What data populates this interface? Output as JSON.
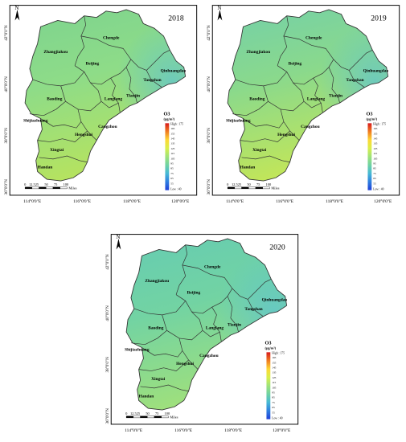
{
  "maps": [
    {
      "year": "2018",
      "north": "N",
      "cities": [
        {
          "name": "Zhangjiakou"
        },
        {
          "name": "Chengde"
        },
        {
          "name": "Beijing"
        },
        {
          "name": "Qinhuangdao"
        },
        {
          "name": "Tangshan"
        },
        {
          "name": "Tianjin"
        },
        {
          "name": "Langfang"
        },
        {
          "name": "Baoding"
        },
        {
          "name": "Cangzhou"
        },
        {
          "name": "Shijiazhuang"
        },
        {
          "name": "Hengshui"
        },
        {
          "name": "Xingtai"
        },
        {
          "name": "Handan"
        }
      ],
      "lon_labels": [
        "114°0'0\"E",
        "116°0'0\"E",
        "118°0'0\"E",
        "120°0'0\"E"
      ],
      "lat_labels": [
        "42°0'0\"N",
        "40°0'0\"N",
        "38°0'0\"N",
        "36°0'0\"N"
      ],
      "scale_labels": [
        "0",
        "12.525",
        "50",
        "75",
        "100"
      ],
      "scale_unit": "Miles",
      "legend": {
        "title": "O3",
        "unit": "(μg/m³)",
        "high_label": "High : 175",
        "low_label": "Low : 40",
        "ticks": [
          "165",
          "155",
          "145",
          "135",
          "125",
          "115",
          "105",
          "95",
          "85",
          "75",
          "65",
          "55"
        ],
        "colors": [
          "#d7191c",
          "#f07c20",
          "#fdd835",
          "#d9ef4b",
          "#9fe37a",
          "#6fd2a3",
          "#47b9d5",
          "#2f7fe0",
          "#1f3fd8"
        ]
      },
      "fill": {
        "dominant": "#8edc88",
        "north": "#7dd38f",
        "south": "#b6e35f"
      }
    },
    {
      "year": "2019",
      "north": "N",
      "cities": [
        {
          "name": "Zhangjiakou"
        },
        {
          "name": "Chengde"
        },
        {
          "name": "Beijing"
        },
        {
          "name": "Qinhuangdao"
        },
        {
          "name": "Tangshan"
        },
        {
          "name": "Tianjin"
        },
        {
          "name": "Langfang"
        },
        {
          "name": "Baoding"
        },
        {
          "name": "Cangzhou"
        },
        {
          "name": "Shijiazhuang"
        },
        {
          "name": "Hengshui"
        },
        {
          "name": "Xingtai"
        },
        {
          "name": "Handan"
        }
      ],
      "lon_labels": [
        "114°0'0\"E",
        "116°0'0\"E",
        "118°0'0\"E",
        "120°0'0\"E"
      ],
      "lat_labels": [
        "42°0'0\"N",
        "40°0'0\"N",
        "38°0'0\"N",
        "36°0'0\"N"
      ],
      "scale_labels": [
        "0",
        "12.525",
        "50",
        "75",
        "100"
      ],
      "scale_unit": "Miles",
      "legend": {
        "title": "O3",
        "unit": "(μg/m³)",
        "high_label": "High : 175",
        "low_label": "Low : 40",
        "ticks": [
          "165",
          "155",
          "145",
          "135",
          "125",
          "115",
          "105",
          "95",
          "85",
          "75",
          "65",
          "55"
        ],
        "colors": [
          "#d7191c",
          "#f07c20",
          "#fdd835",
          "#d9ef4b",
          "#9fe37a",
          "#6fd2a3",
          "#47b9d5",
          "#2f7fe0",
          "#1f3fd8"
        ]
      },
      "fill": {
        "dominant": "#8ad98c",
        "north": "#74d0a8",
        "south": "#c2e659"
      }
    },
    {
      "year": "2020",
      "north": "N",
      "cities": [
        {
          "name": "Zhangjiakou"
        },
        {
          "name": "Chengde"
        },
        {
          "name": "Beijing"
        },
        {
          "name": "Qinhuangdao"
        },
        {
          "name": "Tangshan"
        },
        {
          "name": "Tianjin"
        },
        {
          "name": "Langfang"
        },
        {
          "name": "Baoding"
        },
        {
          "name": "Cangzhou"
        },
        {
          "name": "Shijiazhuang"
        },
        {
          "name": "Hengshui"
        },
        {
          "name": "Xingtai"
        },
        {
          "name": "Handan"
        }
      ],
      "lon_labels": [
        "114°0'0\"E",
        "116°0'0\"E",
        "118°0'0\"E",
        "120°0'0\"E"
      ],
      "lat_labels": [
        "42°0'0\"N",
        "40°0'0\"N",
        "38°0'0\"N",
        "36°0'0\"N"
      ],
      "scale_labels": [
        "0",
        "12.525",
        "50",
        "75",
        "100"
      ],
      "scale_unit": "Miles",
      "legend": {
        "title": "O3",
        "unit": "(μg/m³)",
        "high_label": "High : 175",
        "low_label": "Low : 40",
        "ticks": [
          "165",
          "155",
          "145",
          "135",
          "125",
          "115",
          "105",
          "95",
          "85",
          "75",
          "65",
          "55"
        ],
        "colors": [
          "#d7191c",
          "#f07c20",
          "#fdd835",
          "#d9ef4b",
          "#9fe37a",
          "#6fd2a3",
          "#47b9d5",
          "#2f7fe0",
          "#1f3fd8"
        ]
      },
      "fill": {
        "dominant": "#72d3a3",
        "north": "#66ccb2",
        "south": "#9fe07c"
      }
    }
  ]
}
